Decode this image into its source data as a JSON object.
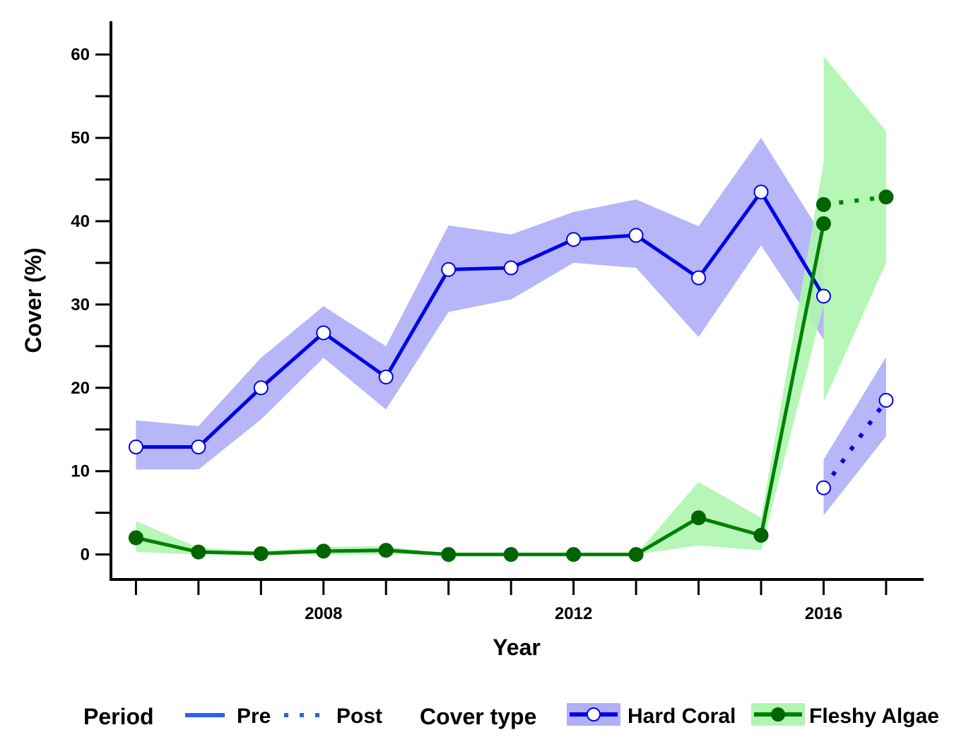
{
  "chart_data": {
    "type": "line",
    "xlabel": "Year",
    "ylabel": "Cover (%)",
    "xlim": [
      2004.6,
      2017.6
    ],
    "ylim": [
      -3,
      64
    ],
    "x_ticks_major": [
      2008,
      2012,
      2016
    ],
    "x_ticks_all": [
      2005,
      2006,
      2007,
      2008,
      2009,
      2010,
      2011,
      2012,
      2013,
      2014,
      2015,
      2016,
      2017
    ],
    "y_ticks": [
      0,
      10,
      20,
      30,
      40,
      50,
      60
    ],
    "grid": false,
    "legend_position": "bottom",
    "series": [
      {
        "name": "Hard Coral",
        "color": "#0000e6",
        "ribbon_color": "#b0b0f7",
        "marker": "open-circle",
        "pre": {
          "x": [
            2005,
            2006,
            2007,
            2008,
            2009,
            2010,
            2011,
            2012,
            2013,
            2014,
            2015,
            2016
          ],
          "y": [
            12.9,
            12.9,
            20.0,
            26.6,
            21.3,
            34.2,
            34.4,
            37.8,
            38.3,
            33.2,
            43.5,
            31.0
          ],
          "lower": [
            10.2,
            10.2,
            16.2,
            23.6,
            17.4,
            29.1,
            30.6,
            35.0,
            34.4,
            26.1,
            37.1,
            25.8
          ],
          "upper": [
            16.1,
            15.4,
            23.6,
            29.8,
            25.0,
            39.5,
            38.4,
            41.1,
            42.6,
            39.4,
            50.0,
            38.0
          ]
        },
        "post": {
          "x": [
            2016,
            2017
          ],
          "y": [
            8.0,
            18.5
          ],
          "lower": [
            4.7,
            14.2
          ],
          "upper": [
            11.4,
            23.7
          ]
        }
      },
      {
        "name": "Fleshy Algae",
        "color": "#008000",
        "ribbon_color": "#b0f5b0",
        "marker": "filled-circle",
        "pre": {
          "x": [
            2005,
            2006,
            2007,
            2008,
            2009,
            2010,
            2011,
            2012,
            2013,
            2014,
            2015,
            2016
          ],
          "y": [
            2.0,
            0.3,
            0.1,
            0.4,
            0.5,
            0.0,
            0.0,
            0.0,
            0.0,
            4.4,
            2.3,
            39.7
          ],
          "lower": [
            0.3,
            0.0,
            0.0,
            0.0,
            0.0,
            0.0,
            0.0,
            0.0,
            0.0,
            1.1,
            0.5,
            30.0
          ],
          "upper": [
            4.0,
            0.8,
            0.4,
            0.9,
            1.0,
            0.0,
            0.0,
            0.0,
            0.0,
            8.7,
            4.4,
            47.0
          ]
        },
        "post": {
          "x": [
            2016,
            2017
          ],
          "y": [
            42.0,
            42.9
          ],
          "lower": [
            18.3,
            35.0
          ],
          "upper": [
            59.8,
            50.8
          ]
        }
      }
    ],
    "legend": {
      "period_title": "Period",
      "period_items": [
        "Pre",
        "Post"
      ],
      "type_title": "Cover type",
      "type_items": [
        "Hard Coral",
        "Fleshy Algae"
      ]
    }
  }
}
